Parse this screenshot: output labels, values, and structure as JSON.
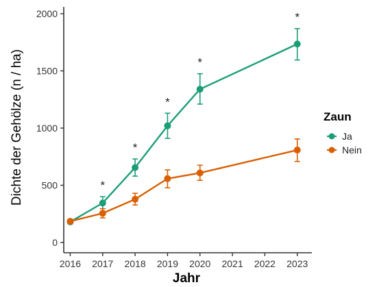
{
  "chart_data": {
    "type": "line",
    "xlabel": "Jahr",
    "ylabel": "Dichte der Gehölze (n / ha)",
    "xlim": [
      2015.8,
      2023.45
    ],
    "ylim": [
      -90,
      2060
    ],
    "x_ticks": [
      "2016",
      "2017",
      "2018",
      "2019",
      "2020",
      "2021",
      "2022",
      "2023"
    ],
    "y_ticks": [
      "0",
      "500",
      "1000",
      "1500",
      "2000"
    ],
    "grid": false,
    "legend": {
      "title": "Zaun",
      "position": "right"
    },
    "significance_marker": "*",
    "series": [
      {
        "name": "Ja",
        "color": "#1b9e77",
        "x": [
          2016,
          2017,
          2018,
          2019,
          2020,
          2023
        ],
        "y": [
          180,
          345,
          655,
          1020,
          1340,
          1735
        ],
        "y_low": [
          165,
          295,
          580,
          910,
          1210,
          1595
        ],
        "y_high": [
          200,
          400,
          730,
          1130,
          1475,
          1870
        ]
      },
      {
        "name": "Nein",
        "color": "#d95f02",
        "x": [
          2016,
          2017,
          2018,
          2019,
          2020,
          2023
        ],
        "y": [
          185,
          255,
          378,
          558,
          608,
          808
        ],
        "y_low": [
          170,
          215,
          328,
          478,
          543,
          708
        ],
        "y_high": [
          198,
          295,
          430,
          635,
          675,
          905
        ]
      }
    ],
    "significant_x": [
      2017,
      2018,
      2019,
      2020,
      2023
    ]
  }
}
